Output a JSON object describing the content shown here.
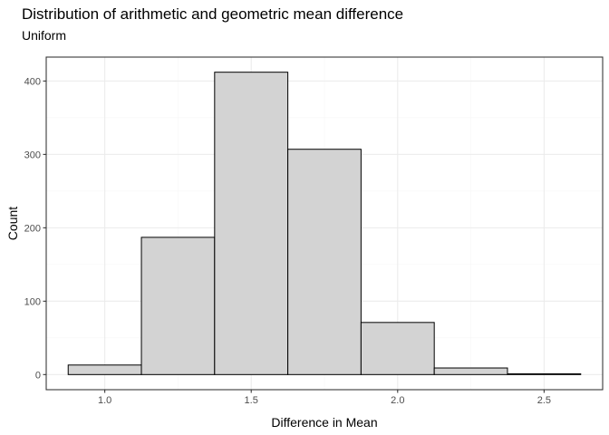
{
  "chart_data": {
    "type": "bar",
    "title": "Distribution of arithmetic and geometric mean difference",
    "subtitle": "Uniform",
    "xlabel": "Difference in Mean",
    "ylabel": "Count",
    "bins": [
      {
        "x0": 0.875,
        "x1": 1.125,
        "count": 13
      },
      {
        "x0": 1.125,
        "x1": 1.375,
        "count": 187
      },
      {
        "x0": 1.375,
        "x1": 1.625,
        "count": 412
      },
      {
        "x0": 1.625,
        "x1": 1.875,
        "count": 307
      },
      {
        "x0": 1.875,
        "x1": 2.125,
        "count": 71
      },
      {
        "x0": 2.125,
        "x1": 2.375,
        "count": 9
      },
      {
        "x0": 2.375,
        "x1": 2.625,
        "count": 1
      }
    ],
    "xlim": [
      0.8,
      2.7
    ],
    "ylim": [
      -20.6,
      432.6
    ],
    "xticks": [
      1.0,
      1.5,
      2.0,
      2.5
    ],
    "xtick_labels": [
      "1.0",
      "1.5",
      "2.0",
      "2.5"
    ],
    "xminor": [
      1.25,
      1.75,
      2.25
    ],
    "yticks": [
      0,
      100,
      200,
      300,
      400
    ],
    "ytick_labels": [
      "0",
      "100",
      "200",
      "300",
      "400"
    ],
    "yminor": [
      50,
      150,
      250,
      350
    ],
    "grid": true,
    "colors": {
      "bar_fill": "#d3d3d3",
      "bar_stroke": "#000000",
      "grid_major": "#ebebeb",
      "grid_minor": "#f5f5f5",
      "panel_border": "#333333",
      "tick_label": "#4d4d4d"
    }
  }
}
